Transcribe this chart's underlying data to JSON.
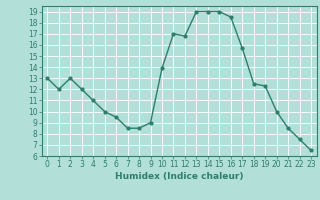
{
  "x": [
    0,
    1,
    2,
    3,
    4,
    5,
    6,
    7,
    8,
    9,
    10,
    11,
    12,
    13,
    14,
    15,
    16,
    17,
    18,
    19,
    20,
    21,
    22,
    23
  ],
  "y": [
    13,
    12,
    13,
    12,
    11,
    10,
    9.5,
    8.5,
    8.5,
    9,
    13.9,
    17,
    16.8,
    19,
    19,
    19,
    18.5,
    15.7,
    12.5,
    12.3,
    10,
    8.5,
    7.5,
    6.5
  ],
  "line_color": "#2e7d6e",
  "marker_color": "#2e7d6e",
  "bg_color": "#b2e0d8",
  "grid_color": "#ffffff",
  "axis_label_color": "#2e7d6e",
  "tick_color": "#2e7d6e",
  "xlabel": "Humidex (Indice chaleur)",
  "ylim": [
    6,
    19.5
  ],
  "xlim": [
    -0.5,
    23.5
  ],
  "yticks": [
    6,
    7,
    8,
    9,
    10,
    11,
    12,
    13,
    14,
    15,
    16,
    17,
    18,
    19
  ],
  "xticks": [
    0,
    1,
    2,
    3,
    4,
    5,
    6,
    7,
    8,
    9,
    10,
    11,
    12,
    13,
    14,
    15,
    16,
    17,
    18,
    19,
    20,
    21,
    22,
    23
  ],
  "tick_fontsize": 5.5,
  "xlabel_fontsize": 6.5,
  "linewidth": 1.0,
  "markersize": 2.0
}
